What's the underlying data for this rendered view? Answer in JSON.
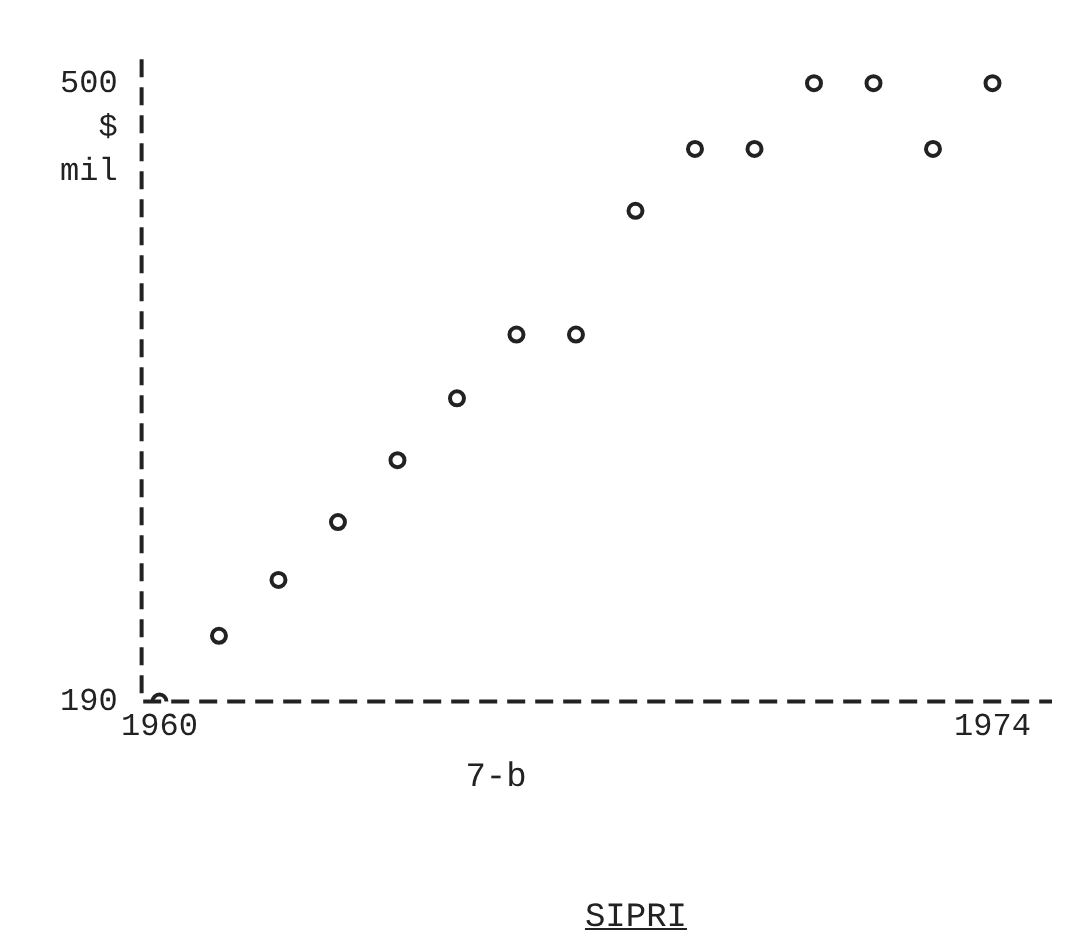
{
  "chart_data": {
    "type": "scatter",
    "ylabel": "$ mil",
    "x": [
      1960,
      1961,
      1962,
      1963,
      1964,
      1965,
      1966,
      1967,
      1968,
      1969,
      1970,
      1971,
      1972,
      1973,
      1974
    ],
    "values": [
      190,
      223,
      251,
      280,
      311,
      342,
      374,
      374,
      436,
      467,
      467,
      500,
      500,
      467,
      500
    ],
    "color": "#222222",
    "marker": "circle",
    "line_style": "dashed",
    "xlim": [
      1959.7,
      1975
    ],
    "xticks": [
      1960,
      1974
    ],
    "ylim": [
      190,
      512
    ],
    "yticks": [
      190,
      500
    ],
    "grid": false,
    "legend": false,
    "annotations": [
      "7-b",
      "SIPRI"
    ]
  }
}
